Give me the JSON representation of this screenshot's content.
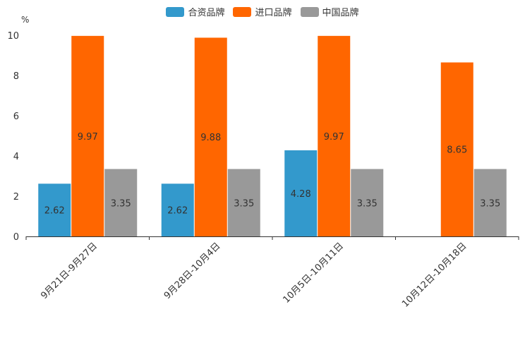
{
  "chart_data": {
    "type": "bar",
    "unit_label": "%",
    "categories": [
      "9月21日-9月27日",
      "9月28日-10月4日",
      "10月5日-10月11日",
      "10月12日-10月18日"
    ],
    "series": [
      {
        "name": "合资品牌",
        "color": "#3399cc",
        "values": [
          2.62,
          2.62,
          4.28,
          null
        ]
      },
      {
        "name": "进口品牌",
        "color": "#ff6600",
        "values": [
          9.97,
          9.88,
          9.97,
          8.65
        ]
      },
      {
        "name": "中国品牌",
        "color": "#999999",
        "values": [
          3.35,
          3.35,
          3.35,
          3.35
        ]
      }
    ],
    "ylim": [
      0,
      10
    ],
    "yticks": [
      0,
      2,
      4,
      6,
      8,
      10
    ],
    "legend_position": "top-center",
    "grid": false
  }
}
